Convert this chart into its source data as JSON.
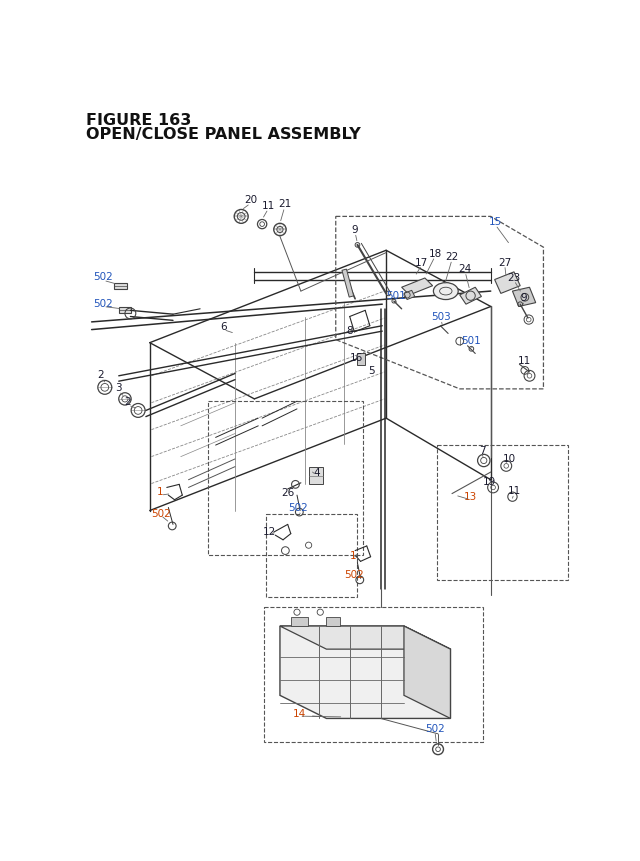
{
  "title_line1": "FIGURE 163",
  "title_line2": "OPEN/CLOSE PANEL ASSEMBLY",
  "bg": "#ffffff",
  "line_color": "#2a2a2a",
  "label_color_black": "#1a1a2e",
  "label_color_orange": "#cc4400",
  "label_color_blue": "#2255bb",
  "title_fs": 11.5,
  "label_fs": 7.5,
  "black_labels": [
    [
      220,
      126,
      "20"
    ],
    [
      243,
      133,
      "11"
    ],
    [
      264,
      131,
      "21"
    ],
    [
      355,
      164,
      "9"
    ],
    [
      185,
      290,
      "6"
    ],
    [
      348,
      296,
      "8"
    ],
    [
      357,
      330,
      "16"
    ],
    [
      376,
      348,
      "5"
    ],
    [
      27,
      353,
      "2"
    ],
    [
      50,
      370,
      "3"
    ],
    [
      62,
      388,
      "2"
    ],
    [
      305,
      480,
      "4"
    ],
    [
      268,
      506,
      "26"
    ],
    [
      441,
      207,
      "17"
    ],
    [
      458,
      195,
      "18"
    ],
    [
      480,
      199,
      "22"
    ],
    [
      548,
      207,
      "27"
    ],
    [
      497,
      215,
      "24"
    ],
    [
      560,
      227,
      "23"
    ],
    [
      572,
      253,
      "9"
    ],
    [
      573,
      335,
      "11"
    ],
    [
      519,
      452,
      "7"
    ],
    [
      554,
      462,
      "10"
    ],
    [
      528,
      492,
      "19"
    ],
    [
      560,
      503,
      "11"
    ],
    [
      244,
      556,
      "12"
    ]
  ],
  "orange_labels": [
    [
      104,
      505,
      "1"
    ],
    [
      104,
      533,
      "502"
    ],
    [
      352,
      588,
      "1"
    ],
    [
      354,
      612,
      "502"
    ],
    [
      504,
      511,
      "13"
    ],
    [
      283,
      793,
      "14"
    ]
  ],
  "blue_labels": [
    [
      30,
      225,
      "502"
    ],
    [
      30,
      260,
      "502"
    ],
    [
      408,
      250,
      "501"
    ],
    [
      505,
      308,
      "501"
    ],
    [
      466,
      277,
      "503"
    ],
    [
      536,
      154,
      "15"
    ],
    [
      282,
      525,
      "502"
    ],
    [
      458,
      812,
      "502"
    ]
  ]
}
